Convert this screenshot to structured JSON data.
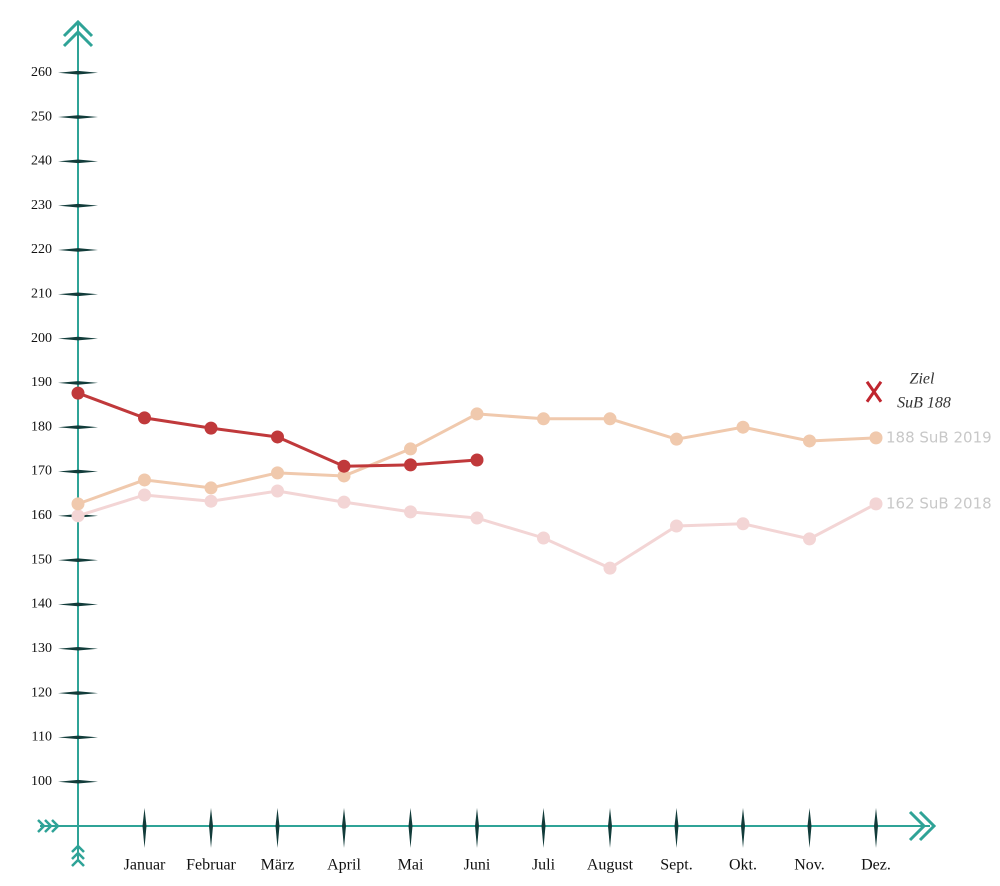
{
  "chart_data": {
    "type": "line",
    "categories": [
      null,
      "Januar",
      "Februar",
      "März",
      "April",
      "Mai",
      "Juni",
      "Juli",
      "August",
      "Sept.",
      "Okt.",
      "Nov.",
      "Dez."
    ],
    "series": [
      {
        "name": "162 SuB 2018",
        "color": "#f3d5d5",
        "values": [
          160,
          164.7,
          163.3,
          165.6,
          163.1,
          160.9,
          159.5,
          155,
          148.2,
          157.7,
          158.2,
          154.8,
          162.7
        ]
      },
      {
        "name": "188 SuB 2019",
        "color": "#f0c9ad",
        "values": [
          162.7,
          168.1,
          166.3,
          169.7,
          169,
          175.1,
          183,
          181.9,
          181.9,
          177.3,
          180,
          176.9,
          177.6
        ]
      },
      {
        "color": "#c0393b",
        "values": [
          187.7,
          182.1,
          179.8,
          177.8,
          171.2,
          171.5,
          172.6,
          null,
          null,
          null,
          null,
          null,
          null
        ]
      }
    ],
    "goal": {
      "lines": [
        "Ziel",
        "SuB 188"
      ],
      "value": 188,
      "color": "#c0262f"
    },
    "ylim": [
      90,
      270
    ],
    "yticks": [
      100,
      110,
      120,
      130,
      140,
      150,
      160,
      170,
      180,
      190,
      200,
      210,
      220,
      230,
      240,
      250,
      260
    ]
  }
}
